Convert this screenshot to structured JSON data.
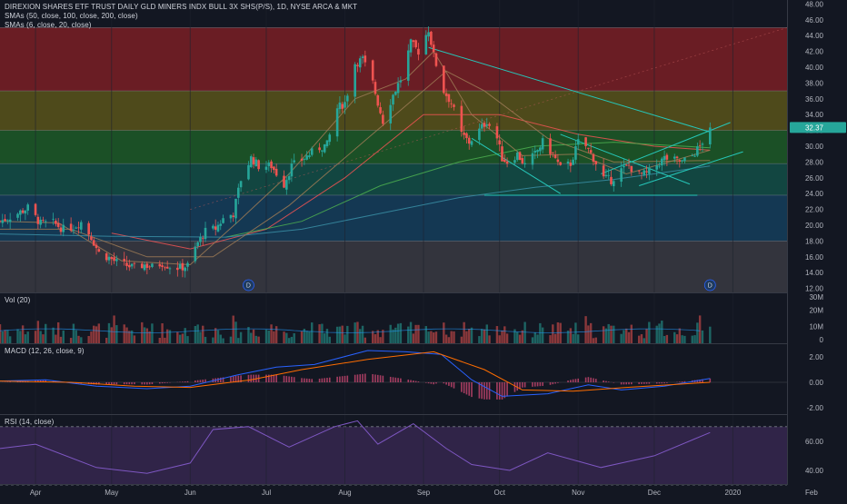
{
  "colors": {
    "background": "#131722",
    "grid": "#1e222d",
    "up": "#26a69a",
    "down": "#ef5350",
    "axis_text": "#b2b5be",
    "last_price_badge": "#26a69a",
    "sma50": "#f05454",
    "sma100": "#4caf50",
    "sma200": "#3a8fa6",
    "sma_channel": "#9c7a55",
    "trendline": "#26c6b8",
    "macd_line": "#2962ff",
    "signal_line": "#ff6d00",
    "rsi_line": "#7e57c2",
    "rsi_band": "#3b2a55"
  },
  "panels": {
    "price": {
      "legend_title": "DIREXION SHARES ETF TRUST DAILY GLD MINERS INDX BULL 3X SHS(P/S), 1D, NYSE ARCA & MKT",
      "legend_sma_a": "SMAs (50, close, 100, close, 200, close)",
      "legend_sma_b": "SMAs (6, close, 20, close)",
      "last_price": "32.37",
      "dividend_marker": "D"
    },
    "volume": {
      "legend": "Vol (20)"
    },
    "macd": {
      "legend": "MACD (12, 26, close, 9)"
    },
    "rsi": {
      "legend": "RSI (14, close)"
    }
  },
  "chart_data": [
    {
      "type": "candlestick",
      "title": "DIREXION SHARES ETF TRUST DAILY GLD MINERS INDX BULL 3X SHS(P/S), 1D, NYSE ARCA & MKT",
      "ylim": [
        11.5,
        48.5
      ],
      "y_ticks": [
        "48.00",
        "46.00",
        "44.00",
        "42.00",
        "40.00",
        "38.00",
        "36.00",
        "34.00",
        "32.00",
        "30.00",
        "28.00",
        "26.00",
        "24.00",
        "22.00",
        "20.00",
        "18.00",
        "16.00",
        "14.00",
        "12.00"
      ],
      "x_ticks": [
        "Apr",
        "May",
        "Jun",
        "Jul",
        "Aug",
        "Sep",
        "Oct",
        "Nov",
        "Dec",
        "2020",
        "Feb"
      ],
      "x_tick_times": [
        "2019-04-01",
        "2019-05-01",
        "2019-06-01",
        "2019-07-01",
        "2019-08-01",
        "2019-09-01",
        "2019-10-01",
        "2019-11-01",
        "2019-12-01",
        "2020-01-01",
        "2020-02-01"
      ],
      "x_range": [
        "2019-03-18",
        "2020-02-15"
      ],
      "last_date": "2019-12-23",
      "price_path": [
        [
          "2019-03-18",
          20.5
        ],
        [
          "2019-03-25",
          21.5
        ],
        [
          "2019-03-29",
          22.2
        ],
        [
          "2019-04-03",
          20.2
        ],
        [
          "2019-04-08",
          20.3
        ],
        [
          "2019-04-12",
          19.5
        ],
        [
          "2019-04-16",
          19.8
        ],
        [
          "2019-04-19",
          20.4
        ],
        [
          "2019-04-23",
          18.5
        ],
        [
          "2019-04-26",
          16.5
        ],
        [
          "2019-04-30",
          15.9
        ],
        [
          "2019-05-03",
          15.3
        ],
        [
          "2019-05-07",
          14.9
        ],
        [
          "2019-05-10",
          14.6
        ],
        [
          "2019-05-14",
          15.0
        ],
        [
          "2019-05-17",
          14.7
        ],
        [
          "2019-05-21",
          15.2
        ],
        [
          "2019-05-24",
          14.8
        ],
        [
          "2019-05-28",
          14.6
        ],
        [
          "2019-05-31",
          14.9
        ],
        [
          "2019-06-04",
          17.8
        ],
        [
          "2019-06-07",
          19.2
        ],
        [
          "2019-06-11",
          19.6
        ],
        [
          "2019-06-14",
          20.8
        ],
        [
          "2019-06-18",
          21.5
        ],
        [
          "2019-06-21",
          25.8
        ],
        [
          "2019-06-25",
          28.5
        ],
        [
          "2019-06-28",
          27.5
        ],
        [
          "2019-07-03",
          27.5
        ],
        [
          "2019-07-08",
          25.2
        ],
        [
          "2019-07-11",
          27.5
        ],
        [
          "2019-07-16",
          28.5
        ],
        [
          "2019-07-19",
          29.2
        ],
        [
          "2019-07-22",
          29.8
        ],
        [
          "2019-07-25",
          30.2
        ],
        [
          "2019-07-29",
          34.8
        ],
        [
          "2019-08-01",
          35.5
        ],
        [
          "2019-08-05",
          40.5
        ],
        [
          "2019-08-08",
          41.0
        ],
        [
          "2019-08-12",
          38.0
        ],
        [
          "2019-08-14",
          35.5
        ],
        [
          "2019-08-16",
          33.2
        ],
        [
          "2019-08-20",
          36.5
        ],
        [
          "2019-08-23",
          38.5
        ],
        [
          "2019-08-27",
          43.0
        ],
        [
          "2019-08-30",
          42.0
        ],
        [
          "2019-09-03",
          44.8
        ],
        [
          "2019-09-05",
          41.5
        ],
        [
          "2019-09-09",
          37.0
        ],
        [
          "2019-09-12",
          35.5
        ],
        [
          "2019-09-16",
          31.5
        ],
        [
          "2019-09-19",
          30.5
        ],
        [
          "2019-09-23",
          32.0
        ],
        [
          "2019-09-26",
          33.2
        ],
        [
          "2019-09-30",
          31.0
        ],
        [
          "2019-10-02",
          28.5
        ],
        [
          "2019-10-04",
          28.0
        ],
        [
          "2019-10-08",
          29.0
        ],
        [
          "2019-10-11",
          27.6
        ],
        [
          "2019-10-15",
          29.0
        ],
        [
          "2019-10-18",
          30.5
        ],
        [
          "2019-10-22",
          29.0
        ],
        [
          "2019-10-25",
          27.2
        ],
        [
          "2019-10-29",
          27.8
        ],
        [
          "2019-11-01",
          30.5
        ],
        [
          "2019-11-04",
          30.0
        ],
        [
          "2019-11-07",
          28.5
        ],
        [
          "2019-11-11",
          26.0
        ],
        [
          "2019-11-14",
          25.7
        ],
        [
          "2019-11-18",
          27.0
        ],
        [
          "2019-11-21",
          27.5
        ],
        [
          "2019-11-25",
          26.4
        ],
        [
          "2019-11-28",
          26.5
        ],
        [
          "2019-12-02",
          27.6
        ],
        [
          "2019-12-05",
          28.5
        ],
        [
          "2019-12-09",
          28.2
        ],
        [
          "2019-12-12",
          28.0
        ],
        [
          "2019-12-16",
          28.8
        ],
        [
          "2019-12-19",
          30.0
        ],
        [
          "2019-12-23",
          32.37
        ]
      ],
      "series": [
        {
          "name": "SMA 50",
          "path": [
            [
              "2019-05-01",
              19.0
            ],
            [
              "2019-06-01",
              17.0
            ],
            [
              "2019-07-01",
              19.5
            ],
            [
              "2019-08-01",
              26.0
            ],
            [
              "2019-09-01",
              34.0
            ],
            [
              "2019-10-01",
              34.0
            ],
            [
              "2019-11-01",
              31.5
            ],
            [
              "2019-12-01",
              30.0
            ],
            [
              "2019-12-23",
              29.5
            ]
          ]
        },
        {
          "name": "SMA 100",
          "path": [
            [
              "2019-06-15",
              18.5
            ],
            [
              "2019-07-15",
              20.5
            ],
            [
              "2019-08-15",
              25.0
            ],
            [
              "2019-09-15",
              28.0
            ],
            [
              "2019-10-15",
              30.0
            ],
            [
              "2019-11-15",
              30.5
            ],
            [
              "2019-12-23",
              29.8
            ]
          ]
        },
        {
          "name": "SMA 200",
          "path": [
            [
              "2019-03-18",
              18.9
            ],
            [
              "2019-05-01",
              18.6
            ],
            [
              "2019-06-15",
              18.5
            ],
            [
              "2019-07-15",
              19.5
            ],
            [
              "2019-08-15",
              21.5
            ],
            [
              "2019-09-15",
              23.5
            ],
            [
              "2019-10-15",
              24.8
            ],
            [
              "2019-11-15",
              25.8
            ],
            [
              "2019-12-23",
              27.5
            ]
          ]
        },
        {
          "name": "SMA 6",
          "path": [
            [
              "2019-03-18",
              20.5
            ],
            [
              "2019-04-10",
              20.3
            ],
            [
              "2019-05-05",
              15.5
            ],
            [
              "2019-06-01",
              15.0
            ],
            [
              "2019-06-20",
              20.5
            ],
            [
              "2019-07-10",
              26.5
            ],
            [
              "2019-08-05",
              36.0
            ],
            [
              "2019-08-25",
              38.5
            ],
            [
              "2019-09-05",
              42.0
            ],
            [
              "2019-09-20",
              34.0
            ],
            [
              "2019-10-10",
              28.8
            ],
            [
              "2019-11-01",
              29.0
            ],
            [
              "2019-11-20",
              26.5
            ],
            [
              "2019-12-23",
              29.5
            ]
          ]
        },
        {
          "name": "SMA 20",
          "path": [
            [
              "2019-03-18",
              19.5
            ],
            [
              "2019-04-15",
              19.5
            ],
            [
              "2019-05-15",
              16.0
            ],
            [
              "2019-06-10",
              16.0
            ],
            [
              "2019-07-10",
              22.5
            ],
            [
              "2019-08-10",
              31.0
            ],
            [
              "2019-09-10",
              39.5
            ],
            [
              "2019-09-25",
              37.0
            ],
            [
              "2019-10-20",
              31.0
            ],
            [
              "2019-11-15",
              28.0
            ],
            [
              "2019-12-23",
              28.2
            ]
          ]
        }
      ],
      "fib_levels": [
        {
          "from": 45.0,
          "to": 37.0,
          "color": "#7a1e25"
        },
        {
          "from": 37.0,
          "to": 32.0,
          "color": "#59541a"
        },
        {
          "from": 32.0,
          "to": 27.8,
          "color": "#1d5b27"
        },
        {
          "from": 27.8,
          "to": 23.8,
          "color": "#134f46"
        },
        {
          "from": 23.8,
          "to": 18.0,
          "color": "#153e5c"
        },
        {
          "from": 18.0,
          "to": 11.5,
          "color": "#3a3a42"
        }
      ],
      "trendlines": [
        {
          "from": [
            "2019-09-03",
            42.5
          ],
          "to": [
            "2019-12-23",
            31.8
          ]
        },
        {
          "from": [
            "2019-09-20",
            31.0
          ],
          "to": [
            "2019-10-25",
            24.0
          ]
        },
        {
          "from": [
            "2019-10-25",
            31.5
          ],
          "to": [
            "2019-12-15",
            25.2
          ]
        },
        {
          "from": [
            "2019-11-10",
            26.5
          ],
          "to": [
            "2019-12-31",
            33.0
          ]
        },
        {
          "from": [
            "2019-11-25",
            25.0
          ],
          "to": [
            "2020-01-05",
            29.3
          ]
        },
        {
          "from": [
            "2019-09-25",
            23.8
          ],
          "to": [
            "2019-12-18",
            23.8
          ]
        }
      ],
      "dividend_markers": [
        "2019-06-24",
        "2019-12-23"
      ]
    },
    {
      "type": "bar",
      "title": "Vol (20)",
      "ylim": [
        0,
        30000000
      ],
      "y_ticks": [
        "30M",
        "20M",
        "10M",
        "0"
      ],
      "y_tick_values": [
        30000000,
        20000000,
        10000000,
        0
      ],
      "values_note": "daily volume between 3M and 15M, avg about 8M"
    },
    {
      "type": "line",
      "title": "MACD (12, 26, close, 9)",
      "ylim": [
        -2.5,
        3.0
      ],
      "y_ticks": [
        "2.00",
        "0.00",
        "-2.00"
      ],
      "y_tick_values": [
        2.0,
        0.0,
        -2.0
      ],
      "series": [
        {
          "name": "MACD",
          "path": [
            [
              "2019-03-18",
              0.1
            ],
            [
              "2019-04-05",
              0.2
            ],
            [
              "2019-04-25",
              -0.3
            ],
            [
              "2019-05-15",
              -0.5
            ],
            [
              "2019-06-01",
              -0.3
            ],
            [
              "2019-06-20",
              0.6
            ],
            [
              "2019-07-05",
              1.2
            ],
            [
              "2019-07-20",
              1.4
            ],
            [
              "2019-08-10",
              2.5
            ],
            [
              "2019-08-25",
              2.4
            ],
            [
              "2019-09-08",
              2.2
            ],
            [
              "2019-09-20",
              0.2
            ],
            [
              "2019-10-02",
              -1.1
            ],
            [
              "2019-10-20",
              -0.9
            ],
            [
              "2019-11-05",
              -0.2
            ],
            [
              "2019-11-18",
              -0.6
            ],
            [
              "2019-12-05",
              -0.3
            ],
            [
              "2019-12-23",
              0.3
            ]
          ]
        },
        {
          "name": "Signal",
          "path": [
            [
              "2019-03-18",
              0.1
            ],
            [
              "2019-04-15",
              0.0
            ],
            [
              "2019-05-10",
              -0.3
            ],
            [
              "2019-06-01",
              -0.4
            ],
            [
              "2019-06-25",
              0.2
            ],
            [
              "2019-07-15",
              1.0
            ],
            [
              "2019-08-10",
              1.8
            ],
            [
              "2019-09-05",
              2.4
            ],
            [
              "2019-09-25",
              1.0
            ],
            [
              "2019-10-10",
              -0.6
            ],
            [
              "2019-10-30",
              -0.7
            ],
            [
              "2019-11-20",
              -0.4
            ],
            [
              "2019-12-23",
              0.0
            ]
          ]
        }
      ]
    },
    {
      "type": "line",
      "title": "RSI (14, close)",
      "ylim": [
        30,
        78
      ],
      "y_ticks": [
        "60.00",
        "40.00"
      ],
      "y_tick_values": [
        60.0,
        40.0
      ],
      "band": [
        30,
        70
      ],
      "series": [
        {
          "name": "RSI",
          "path": [
            [
              "2019-03-18",
              55
            ],
            [
              "2019-04-01",
              58
            ],
            [
              "2019-04-25",
              42
            ],
            [
              "2019-05-15",
              38
            ],
            [
              "2019-06-01",
              45
            ],
            [
              "2019-06-10",
              68
            ],
            [
              "2019-06-24",
              70
            ],
            [
              "2019-07-10",
              56
            ],
            [
              "2019-07-28",
              70
            ],
            [
              "2019-08-06",
              74
            ],
            [
              "2019-08-14",
              58
            ],
            [
              "2019-08-28",
              72
            ],
            [
              "2019-09-10",
              55
            ],
            [
              "2019-09-20",
              44
            ],
            [
              "2019-10-05",
              40
            ],
            [
              "2019-10-20",
              52
            ],
            [
              "2019-11-10",
              42
            ],
            [
              "2019-12-01",
              50
            ],
            [
              "2019-12-23",
              66
            ]
          ]
        }
      ]
    }
  ]
}
